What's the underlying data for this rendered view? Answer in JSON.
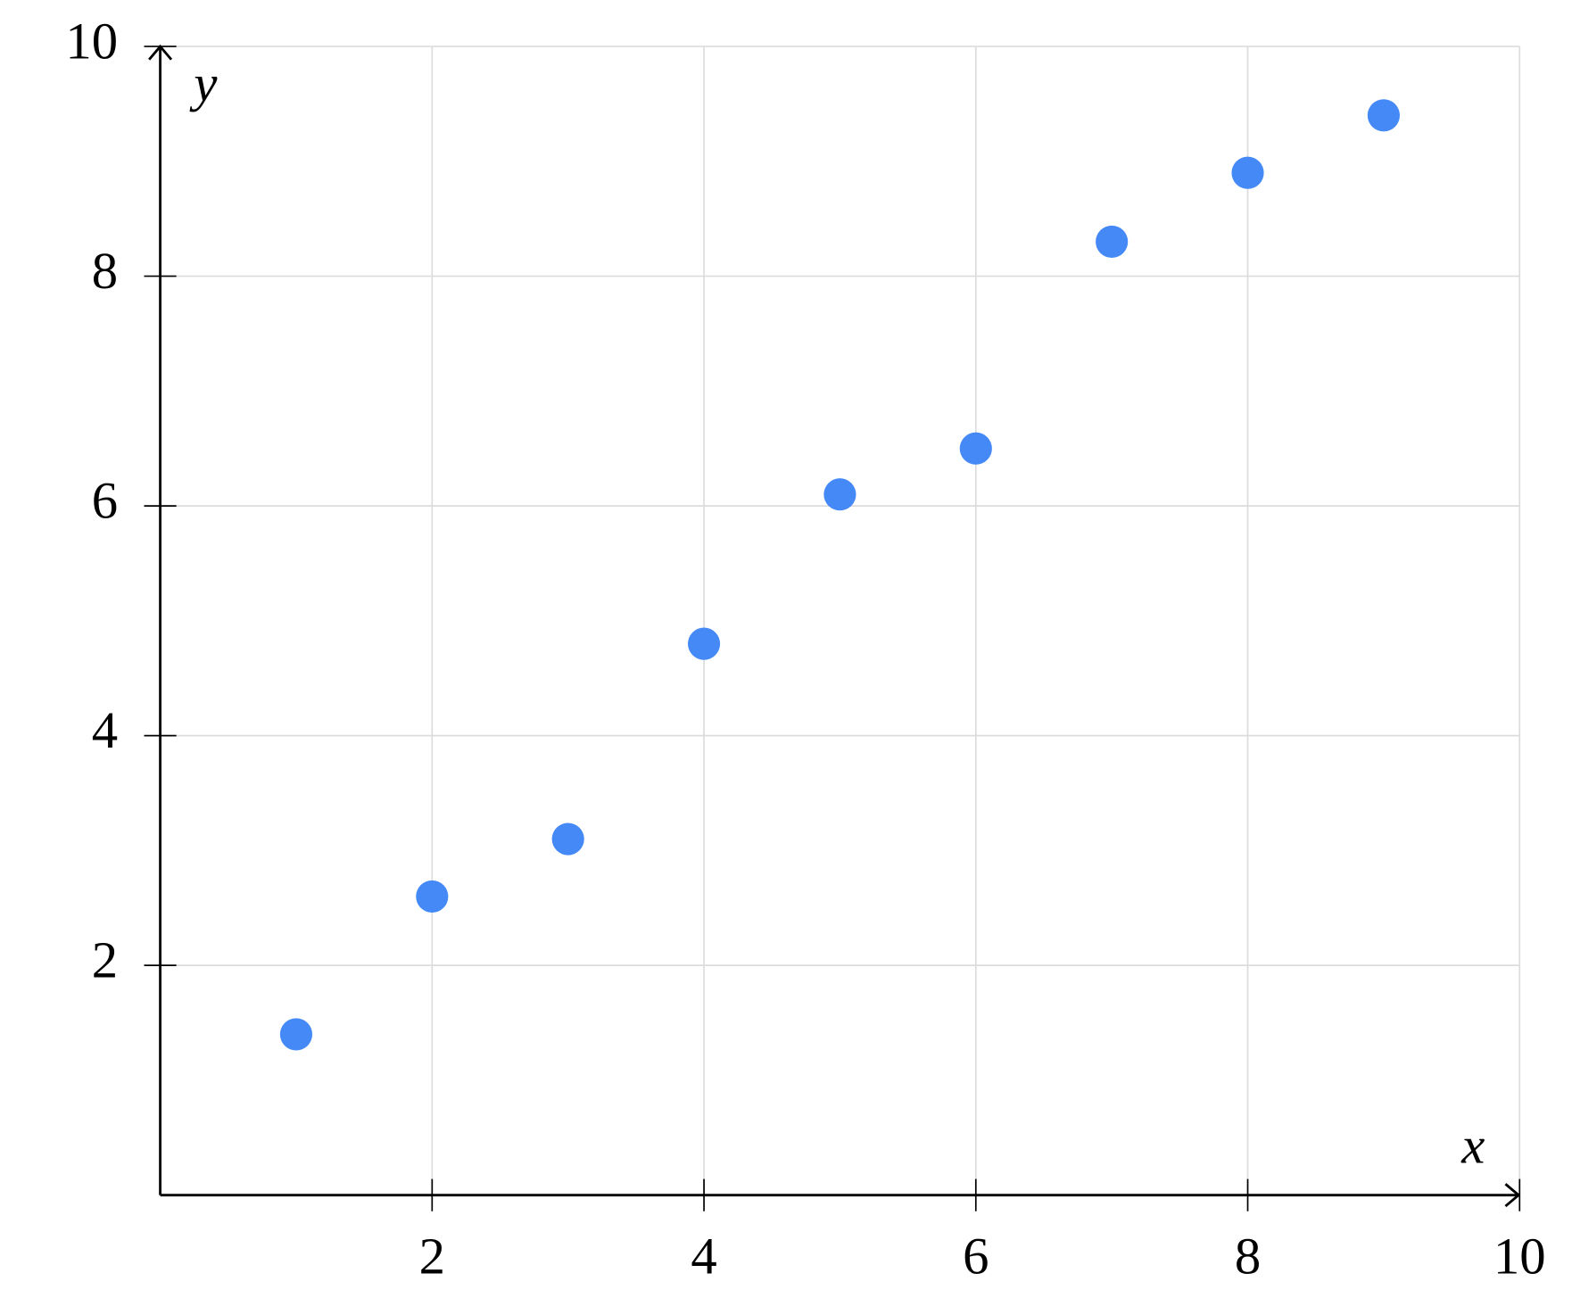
{
  "chart_data": {
    "type": "scatter",
    "x_label": "x",
    "y_label": "y",
    "x": [
      1,
      2,
      3,
      4,
      5,
      6,
      7,
      8,
      9
    ],
    "series": [
      {
        "color": "#4589f7",
        "values": [
          1.4,
          2.6,
          3.1,
          4.8,
          6.1,
          6.5,
          8.3,
          8.9,
          9.4
        ]
      }
    ],
    "xlim": [
      0,
      10
    ],
    "ylim": [
      0,
      10
    ],
    "xticks": [
      2,
      4,
      6,
      8,
      10
    ],
    "yticks": [
      2,
      4,
      6,
      8,
      10
    ],
    "grid": true
  }
}
